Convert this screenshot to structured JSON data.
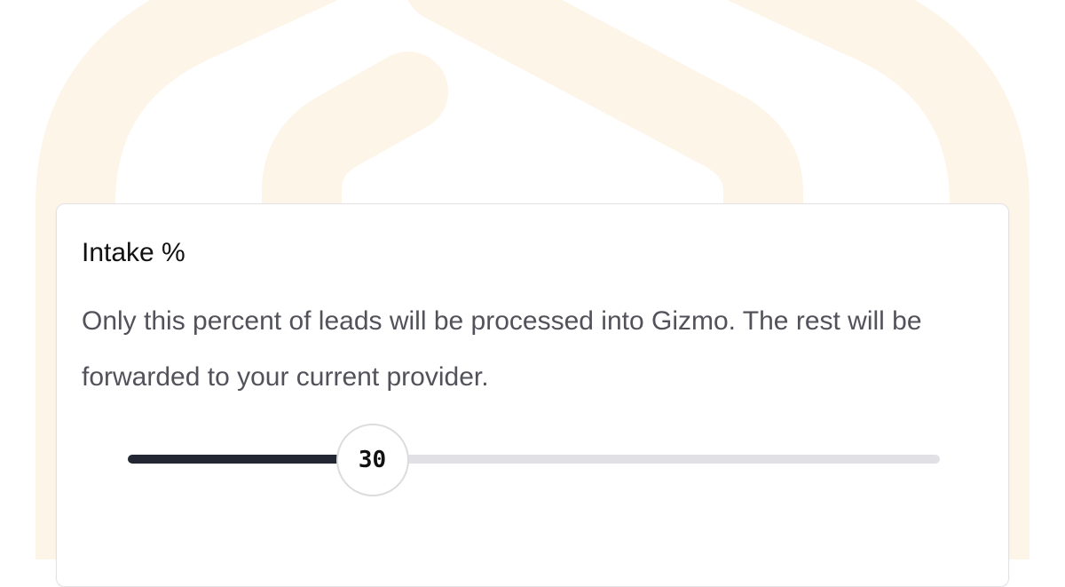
{
  "background": {
    "logo_color": "#fef5e9"
  },
  "card": {
    "title": "Intake %",
    "description": "Only this percent of leads will be processed into Gizmo. The rest will be forwarded to your current provider."
  },
  "slider": {
    "value": 30,
    "value_label": "30",
    "min": 0,
    "max": 100,
    "fill_color": "#232734",
    "track_color": "#e1e1e5"
  }
}
